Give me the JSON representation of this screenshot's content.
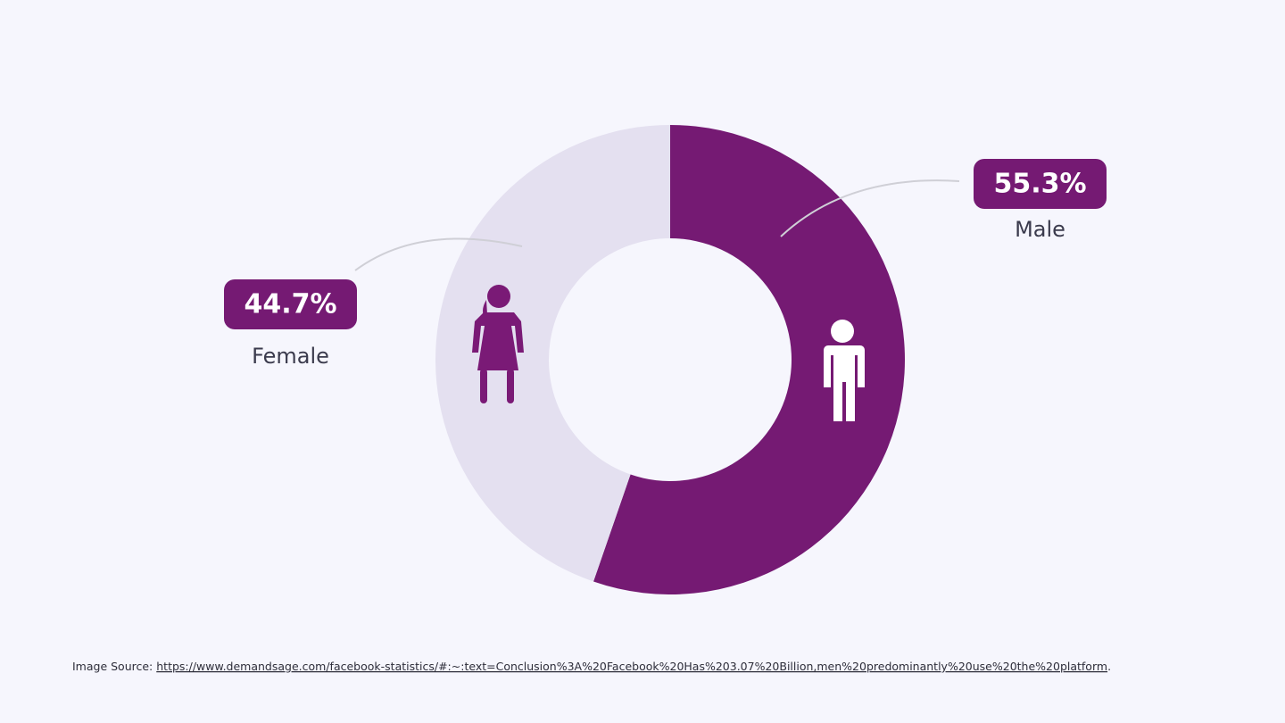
{
  "chart_data": {
    "type": "pie",
    "categories": [
      "Male",
      "Female"
    ],
    "values": [
      55.3,
      44.7
    ],
    "value_labels": [
      "55.3%",
      "44.7%"
    ],
    "colors": [
      "#751a73",
      "#e4e0f0"
    ],
    "label_color": "#751a73"
  },
  "source": {
    "label": "Image Source:",
    "url": "https://www.demandsage.com/facebook-statistics/#:~:text=Conclusion%3A%20Facebook%20Has%203.07%20Billion,men%20predominantly%20use%20the%20platform",
    "suffix": "."
  }
}
